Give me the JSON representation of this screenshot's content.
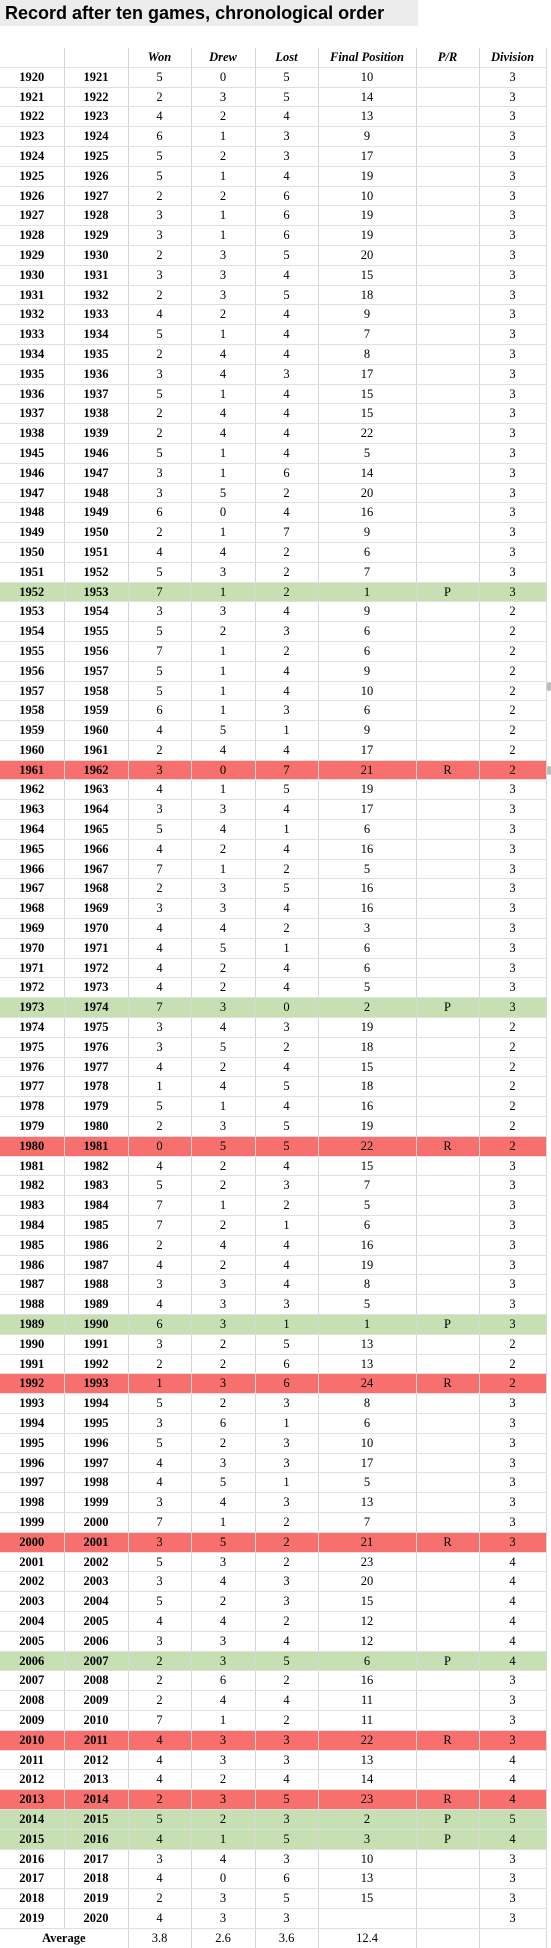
{
  "title": "Record after ten games, chronological order",
  "headers": {
    "season_start": "",
    "season_end": "",
    "won": "Won",
    "drew": "Drew",
    "lost": "Lost",
    "final_position": "Final Position",
    "pr": "P/R",
    "division": "Division"
  },
  "colors": {
    "promoted": "#c6e0b4",
    "relegated": "#f8706d",
    "title_bg": "#ececec"
  },
  "rows": [
    {
      "a": "1920",
      "b": "1921",
      "won": "5",
      "drew": "0",
      "lost": "5",
      "pos": "10",
      "pr": "",
      "div": "3",
      "status": ""
    },
    {
      "a": "1921",
      "b": "1922",
      "won": "2",
      "drew": "3",
      "lost": "5",
      "pos": "14",
      "pr": "",
      "div": "3",
      "status": ""
    },
    {
      "a": "1922",
      "b": "1923",
      "won": "4",
      "drew": "2",
      "lost": "4",
      "pos": "13",
      "pr": "",
      "div": "3",
      "status": ""
    },
    {
      "a": "1923",
      "b": "1924",
      "won": "6",
      "drew": "1",
      "lost": "3",
      "pos": "9",
      "pr": "",
      "div": "3",
      "status": ""
    },
    {
      "a": "1924",
      "b": "1925",
      "won": "5",
      "drew": "2",
      "lost": "3",
      "pos": "17",
      "pr": "",
      "div": "3",
      "status": ""
    },
    {
      "a": "1925",
      "b": "1926",
      "won": "5",
      "drew": "1",
      "lost": "4",
      "pos": "19",
      "pr": "",
      "div": "3",
      "status": ""
    },
    {
      "a": "1926",
      "b": "1927",
      "won": "2",
      "drew": "2",
      "lost": "6",
      "pos": "10",
      "pr": "",
      "div": "3",
      "status": ""
    },
    {
      "a": "1927",
      "b": "1928",
      "won": "3",
      "drew": "1",
      "lost": "6",
      "pos": "19",
      "pr": "",
      "div": "3",
      "status": ""
    },
    {
      "a": "1928",
      "b": "1929",
      "won": "3",
      "drew": "1",
      "lost": "6",
      "pos": "19",
      "pr": "",
      "div": "3",
      "status": ""
    },
    {
      "a": "1929",
      "b": "1930",
      "won": "2",
      "drew": "3",
      "lost": "5",
      "pos": "20",
      "pr": "",
      "div": "3",
      "status": ""
    },
    {
      "a": "1930",
      "b": "1931",
      "won": "3",
      "drew": "3",
      "lost": "4",
      "pos": "15",
      "pr": "",
      "div": "3",
      "status": ""
    },
    {
      "a": "1931",
      "b": "1932",
      "won": "2",
      "drew": "3",
      "lost": "5",
      "pos": "18",
      "pr": "",
      "div": "3",
      "status": ""
    },
    {
      "a": "1932",
      "b": "1933",
      "won": "4",
      "drew": "2",
      "lost": "4",
      "pos": "9",
      "pr": "",
      "div": "3",
      "status": ""
    },
    {
      "a": "1933",
      "b": "1934",
      "won": "5",
      "drew": "1",
      "lost": "4",
      "pos": "7",
      "pr": "",
      "div": "3",
      "status": ""
    },
    {
      "a": "1934",
      "b": "1935",
      "won": "2",
      "drew": "4",
      "lost": "4",
      "pos": "8",
      "pr": "",
      "div": "3",
      "status": ""
    },
    {
      "a": "1935",
      "b": "1936",
      "won": "3",
      "drew": "4",
      "lost": "3",
      "pos": "17",
      "pr": "",
      "div": "3",
      "status": ""
    },
    {
      "a": "1936",
      "b": "1937",
      "won": "5",
      "drew": "1",
      "lost": "4",
      "pos": "15",
      "pr": "",
      "div": "3",
      "status": ""
    },
    {
      "a": "1937",
      "b": "1938",
      "won": "2",
      "drew": "4",
      "lost": "4",
      "pos": "15",
      "pr": "",
      "div": "3",
      "status": ""
    },
    {
      "a": "1938",
      "b": "1939",
      "won": "2",
      "drew": "4",
      "lost": "4",
      "pos": "22",
      "pr": "",
      "div": "3",
      "status": ""
    },
    {
      "a": "1945",
      "b": "1946",
      "won": "5",
      "drew": "1",
      "lost": "4",
      "pos": "5",
      "pr": "",
      "div": "3",
      "status": ""
    },
    {
      "a": "1946",
      "b": "1947",
      "won": "3",
      "drew": "1",
      "lost": "6",
      "pos": "14",
      "pr": "",
      "div": "3",
      "status": ""
    },
    {
      "a": "1947",
      "b": "1948",
      "won": "3",
      "drew": "5",
      "lost": "2",
      "pos": "20",
      "pr": "",
      "div": "3",
      "status": ""
    },
    {
      "a": "1948",
      "b": "1949",
      "won": "6",
      "drew": "0",
      "lost": "4",
      "pos": "16",
      "pr": "",
      "div": "3",
      "status": ""
    },
    {
      "a": "1949",
      "b": "1950",
      "won": "2",
      "drew": "1",
      "lost": "7",
      "pos": "9",
      "pr": "",
      "div": "3",
      "status": ""
    },
    {
      "a": "1950",
      "b": "1951",
      "won": "4",
      "drew": "4",
      "lost": "2",
      "pos": "6",
      "pr": "",
      "div": "3",
      "status": ""
    },
    {
      "a": "1951",
      "b": "1952",
      "won": "5",
      "drew": "3",
      "lost": "2",
      "pos": "7",
      "pr": "",
      "div": "3",
      "status": ""
    },
    {
      "a": "1952",
      "b": "1953",
      "won": "7",
      "drew": "1",
      "lost": "2",
      "pos": "1",
      "pr": "P",
      "div": "3",
      "status": "promoted"
    },
    {
      "a": "1953",
      "b": "1954",
      "won": "3",
      "drew": "3",
      "lost": "4",
      "pos": "9",
      "pr": "",
      "div": "2",
      "status": ""
    },
    {
      "a": "1954",
      "b": "1955",
      "won": "5",
      "drew": "2",
      "lost": "3",
      "pos": "6",
      "pr": "",
      "div": "2",
      "status": ""
    },
    {
      "a": "1955",
      "b": "1956",
      "won": "7",
      "drew": "1",
      "lost": "2",
      "pos": "6",
      "pr": "",
      "div": "2",
      "status": ""
    },
    {
      "a": "1956",
      "b": "1957",
      "won": "5",
      "drew": "1",
      "lost": "4",
      "pos": "9",
      "pr": "",
      "div": "2",
      "status": ""
    },
    {
      "a": "1957",
      "b": "1958",
      "won": "5",
      "drew": "1",
      "lost": "4",
      "pos": "10",
      "pr": "",
      "div": "2",
      "status": ""
    },
    {
      "a": "1958",
      "b": "1959",
      "won": "6",
      "drew": "1",
      "lost": "3",
      "pos": "6",
      "pr": "",
      "div": "2",
      "status": ""
    },
    {
      "a": "1959",
      "b": "1960",
      "won": "4",
      "drew": "5",
      "lost": "1",
      "pos": "9",
      "pr": "",
      "div": "2",
      "status": ""
    },
    {
      "a": "1960",
      "b": "1961",
      "won": "2",
      "drew": "4",
      "lost": "4",
      "pos": "17",
      "pr": "",
      "div": "2",
      "status": ""
    },
    {
      "a": "1961",
      "b": "1962",
      "won": "3",
      "drew": "0",
      "lost": "7",
      "pos": "21",
      "pr": "R",
      "div": "2",
      "status": "relegated"
    },
    {
      "a": "1962",
      "b": "1963",
      "won": "4",
      "drew": "1",
      "lost": "5",
      "pos": "19",
      "pr": "",
      "div": "3",
      "status": ""
    },
    {
      "a": "1963",
      "b": "1964",
      "won": "3",
      "drew": "3",
      "lost": "4",
      "pos": "17",
      "pr": "",
      "div": "3",
      "status": ""
    },
    {
      "a": "1964",
      "b": "1965",
      "won": "5",
      "drew": "4",
      "lost": "1",
      "pos": "6",
      "pr": "",
      "div": "3",
      "status": ""
    },
    {
      "a": "1965",
      "b": "1966",
      "won": "4",
      "drew": "2",
      "lost": "4",
      "pos": "16",
      "pr": "",
      "div": "3",
      "status": ""
    },
    {
      "a": "1966",
      "b": "1967",
      "won": "7",
      "drew": "1",
      "lost": "2",
      "pos": "5",
      "pr": "",
      "div": "3",
      "status": ""
    },
    {
      "a": "1967",
      "b": "1968",
      "won": "2",
      "drew": "3",
      "lost": "5",
      "pos": "16",
      "pr": "",
      "div": "3",
      "status": ""
    },
    {
      "a": "1968",
      "b": "1969",
      "won": "3",
      "drew": "3",
      "lost": "4",
      "pos": "16",
      "pr": "",
      "div": "3",
      "status": ""
    },
    {
      "a": "1969",
      "b": "1970",
      "won": "4",
      "drew": "4",
      "lost": "2",
      "pos": "3",
      "pr": "",
      "div": "3",
      "status": ""
    },
    {
      "a": "1970",
      "b": "1971",
      "won": "4",
      "drew": "5",
      "lost": "1",
      "pos": "6",
      "pr": "",
      "div": "3",
      "status": ""
    },
    {
      "a": "1971",
      "b": "1972",
      "won": "4",
      "drew": "2",
      "lost": "4",
      "pos": "6",
      "pr": "",
      "div": "3",
      "status": ""
    },
    {
      "a": "1972",
      "b": "1973",
      "won": "4",
      "drew": "2",
      "lost": "4",
      "pos": "5",
      "pr": "",
      "div": "3",
      "status": ""
    },
    {
      "a": "1973",
      "b": "1974",
      "won": "7",
      "drew": "3",
      "lost": "0",
      "pos": "2",
      "pr": "P",
      "div": "3",
      "status": "promoted"
    },
    {
      "a": "1974",
      "b": "1975",
      "won": "3",
      "drew": "4",
      "lost": "3",
      "pos": "19",
      "pr": "",
      "div": "2",
      "status": ""
    },
    {
      "a": "1975",
      "b": "1976",
      "won": "3",
      "drew": "5",
      "lost": "2",
      "pos": "18",
      "pr": "",
      "div": "2",
      "status": ""
    },
    {
      "a": "1976",
      "b": "1977",
      "won": "4",
      "drew": "2",
      "lost": "4",
      "pos": "15",
      "pr": "",
      "div": "2",
      "status": ""
    },
    {
      "a": "1977",
      "b": "1978",
      "won": "1",
      "drew": "4",
      "lost": "5",
      "pos": "18",
      "pr": "",
      "div": "2",
      "status": ""
    },
    {
      "a": "1978",
      "b": "1979",
      "won": "5",
      "drew": "1",
      "lost": "4",
      "pos": "16",
      "pr": "",
      "div": "2",
      "status": ""
    },
    {
      "a": "1979",
      "b": "1980",
      "won": "2",
      "drew": "3",
      "lost": "5",
      "pos": "19",
      "pr": "",
      "div": "2",
      "status": ""
    },
    {
      "a": "1980",
      "b": "1981",
      "won": "0",
      "drew": "5",
      "lost": "5",
      "pos": "22",
      "pr": "R",
      "div": "2",
      "status": "relegated"
    },
    {
      "a": "1981",
      "b": "1982",
      "won": "4",
      "drew": "2",
      "lost": "4",
      "pos": "15",
      "pr": "",
      "div": "3",
      "status": ""
    },
    {
      "a": "1982",
      "b": "1983",
      "won": "5",
      "drew": "2",
      "lost": "3",
      "pos": "7",
      "pr": "",
      "div": "3",
      "status": ""
    },
    {
      "a": "1983",
      "b": "1984",
      "won": "7",
      "drew": "1",
      "lost": "2",
      "pos": "5",
      "pr": "",
      "div": "3",
      "status": ""
    },
    {
      "a": "1984",
      "b": "1985",
      "won": "7",
      "drew": "2",
      "lost": "1",
      "pos": "6",
      "pr": "",
      "div": "3",
      "status": ""
    },
    {
      "a": "1985",
      "b": "1986",
      "won": "2",
      "drew": "4",
      "lost": "4",
      "pos": "16",
      "pr": "",
      "div": "3",
      "status": ""
    },
    {
      "a": "1986",
      "b": "1987",
      "won": "4",
      "drew": "2",
      "lost": "4",
      "pos": "19",
      "pr": "",
      "div": "3",
      "status": ""
    },
    {
      "a": "1987",
      "b": "1988",
      "won": "3",
      "drew": "3",
      "lost": "4",
      "pos": "8",
      "pr": "",
      "div": "3",
      "status": ""
    },
    {
      "a": "1988",
      "b": "1989",
      "won": "4",
      "drew": "3",
      "lost": "3",
      "pos": "5",
      "pr": "",
      "div": "3",
      "status": ""
    },
    {
      "a": "1989",
      "b": "1990",
      "won": "6",
      "drew": "3",
      "lost": "1",
      "pos": "1",
      "pr": "P",
      "div": "3",
      "status": "promoted"
    },
    {
      "a": "1990",
      "b": "1991",
      "won": "3",
      "drew": "2",
      "lost": "5",
      "pos": "13",
      "pr": "",
      "div": "2",
      "status": ""
    },
    {
      "a": "1991",
      "b": "1992",
      "won": "2",
      "drew": "2",
      "lost": "6",
      "pos": "13",
      "pr": "",
      "div": "2",
      "status": ""
    },
    {
      "a": "1992",
      "b": "1993",
      "won": "1",
      "drew": "3",
      "lost": "6",
      "pos": "24",
      "pr": "R",
      "div": "2",
      "status": "relegated"
    },
    {
      "a": "1993",
      "b": "1994",
      "won": "5",
      "drew": "2",
      "lost": "3",
      "pos": "8",
      "pr": "",
      "div": "3",
      "status": ""
    },
    {
      "a": "1994",
      "b": "1995",
      "won": "3",
      "drew": "6",
      "lost": "1",
      "pos": "6",
      "pr": "",
      "div": "3",
      "status": ""
    },
    {
      "a": "1995",
      "b": "1996",
      "won": "5",
      "drew": "2",
      "lost": "3",
      "pos": "10",
      "pr": "",
      "div": "3",
      "status": ""
    },
    {
      "a": "1996",
      "b": "1997",
      "won": "4",
      "drew": "3",
      "lost": "3",
      "pos": "17",
      "pr": "",
      "div": "3",
      "status": ""
    },
    {
      "a": "1997",
      "b": "1998",
      "won": "4",
      "drew": "5",
      "lost": "1",
      "pos": "5",
      "pr": "",
      "div": "3",
      "status": ""
    },
    {
      "a": "1998",
      "b": "1999",
      "won": "3",
      "drew": "4",
      "lost": "3",
      "pos": "13",
      "pr": "",
      "div": "3",
      "status": ""
    },
    {
      "a": "1999",
      "b": "2000",
      "won": "7",
      "drew": "1",
      "lost": "2",
      "pos": "7",
      "pr": "",
      "div": "3",
      "status": ""
    },
    {
      "a": "2000",
      "b": "2001",
      "won": "3",
      "drew": "5",
      "lost": "2",
      "pos": "21",
      "pr": "R",
      "div": "3",
      "status": "relegated"
    },
    {
      "a": "2001",
      "b": "2002",
      "won": "5",
      "drew": "3",
      "lost": "2",
      "pos": "23",
      "pr": "",
      "div": "4",
      "status": ""
    },
    {
      "a": "2002",
      "b": "2003",
      "won": "3",
      "drew": "4",
      "lost": "3",
      "pos": "20",
      "pr": "",
      "div": "4",
      "status": ""
    },
    {
      "a": "2003",
      "b": "2004",
      "won": "5",
      "drew": "2",
      "lost": "3",
      "pos": "15",
      "pr": "",
      "div": "4",
      "status": ""
    },
    {
      "a": "2004",
      "b": "2005",
      "won": "4",
      "drew": "4",
      "lost": "2",
      "pos": "12",
      "pr": "",
      "div": "4",
      "status": ""
    },
    {
      "a": "2005",
      "b": "2006",
      "won": "3",
      "drew": "3",
      "lost": "4",
      "pos": "12",
      "pr": "",
      "div": "4",
      "status": ""
    },
    {
      "a": "2006",
      "b": "2007",
      "won": "2",
      "drew": "3",
      "lost": "5",
      "pos": "6",
      "pr": "P",
      "div": "4",
      "status": "promoted"
    },
    {
      "a": "2007",
      "b": "2008",
      "won": "2",
      "drew": "6",
      "lost": "2",
      "pos": "16",
      "pr": "",
      "div": "3",
      "status": ""
    },
    {
      "a": "2008",
      "b": "2009",
      "won": "2",
      "drew": "4",
      "lost": "4",
      "pos": "11",
      "pr": "",
      "div": "3",
      "status": ""
    },
    {
      "a": "2009",
      "b": "2010",
      "won": "7",
      "drew": "1",
      "lost": "2",
      "pos": "11",
      "pr": "",
      "div": "3",
      "status": ""
    },
    {
      "a": "2010",
      "b": "2011",
      "won": "4",
      "drew": "3",
      "lost": "3",
      "pos": "22",
      "pr": "R",
      "div": "3",
      "status": "relegated"
    },
    {
      "a": "2011",
      "b": "2012",
      "won": "4",
      "drew": "3",
      "lost": "3",
      "pos": "13",
      "pr": "",
      "div": "4",
      "status": ""
    },
    {
      "a": "2012",
      "b": "2013",
      "won": "4",
      "drew": "2",
      "lost": "4",
      "pos": "14",
      "pr": "",
      "div": "4",
      "status": ""
    },
    {
      "a": "2013",
      "b": "2014",
      "won": "2",
      "drew": "3",
      "lost": "5",
      "pos": "23",
      "pr": "R",
      "div": "4",
      "status": "relegated"
    },
    {
      "a": "2014",
      "b": "2015",
      "won": "5",
      "drew": "2",
      "lost": "3",
      "pos": "2",
      "pr": "P",
      "div": "5",
      "status": "promoted"
    },
    {
      "a": "2015",
      "b": "2016",
      "won": "4",
      "drew": "1",
      "lost": "5",
      "pos": "3",
      "pr": "P",
      "div": "4",
      "status": "promoted"
    },
    {
      "a": "2016",
      "b": "2017",
      "won": "3",
      "drew": "4",
      "lost": "3",
      "pos": "10",
      "pr": "",
      "div": "3",
      "status": ""
    },
    {
      "a": "2017",
      "b": "2018",
      "won": "4",
      "drew": "0",
      "lost": "6",
      "pos": "13",
      "pr": "",
      "div": "3",
      "status": ""
    },
    {
      "a": "2018",
      "b": "2019",
      "won": "2",
      "drew": "3",
      "lost": "5",
      "pos": "15",
      "pr": "",
      "div": "3",
      "status": ""
    },
    {
      "a": "2019",
      "b": "2020",
      "won": "4",
      "drew": "3",
      "lost": "3",
      "pos": "",
      "pr": "",
      "div": "3",
      "status": ""
    }
  ],
  "average": {
    "label": "Average",
    "won": "3.8",
    "drew": "2.6",
    "lost": "3.6",
    "pos": "12.4"
  }
}
